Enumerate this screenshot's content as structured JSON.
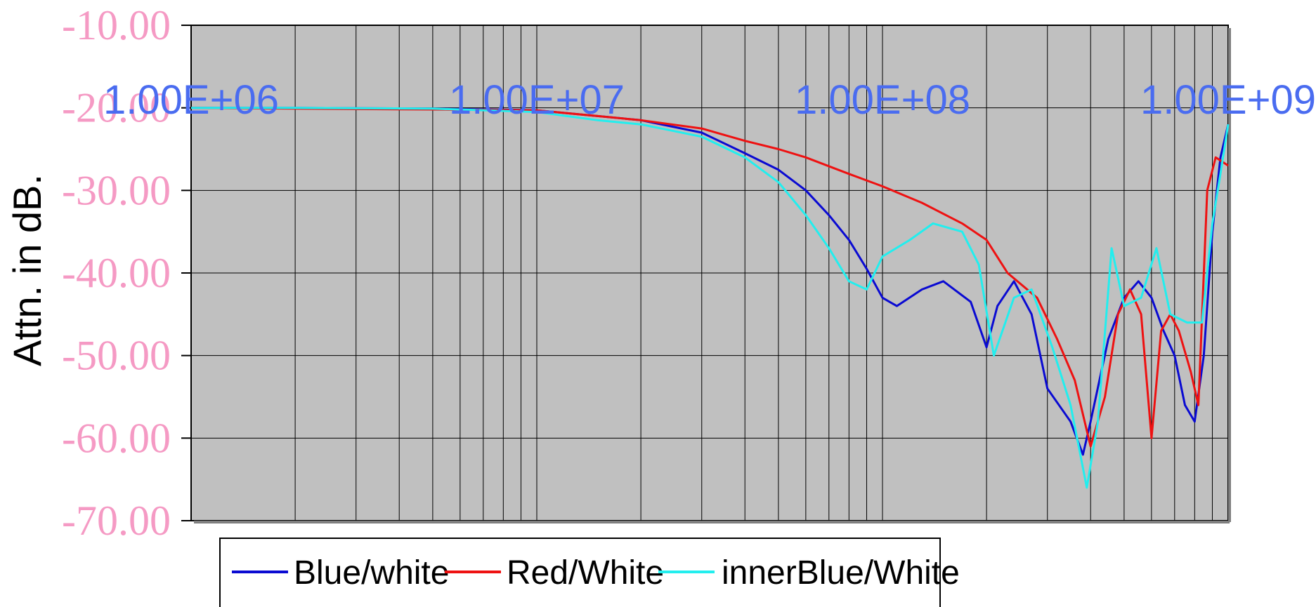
{
  "chart_data": {
    "type": "line",
    "title": "",
    "xlabel": "",
    "ylabel": "Attn. in dB.",
    "x_scale": "log",
    "xlim": [
      1000000,
      1000000000
    ],
    "ylim": [
      -70,
      -10
    ],
    "x_tick_labels": [
      "1.00E+06",
      "1.00E+07",
      "1.00E+08",
      "1.00E+09"
    ],
    "x_tick_values": [
      1000000,
      10000000,
      100000000,
      1000000000
    ],
    "y_tick_labels": [
      "-10.00",
      "-20.00",
      "-30.00",
      "-40.00",
      "-50.00",
      "-60.00",
      "-70.00"
    ],
    "y_tick_values": [
      -10,
      -20,
      -30,
      -40,
      -50,
      -60,
      -70
    ],
    "grid": true,
    "plot_background": "#c0c0c0",
    "legend_position": "bottom",
    "series": [
      {
        "name": "Blue/white",
        "color": "#0a0ad2",
        "points": [
          [
            1000000,
            -20.0
          ],
          [
            2000000,
            -20.0
          ],
          [
            5000000,
            -20.1
          ],
          [
            10000000,
            -20.3
          ],
          [
            15000000,
            -21.0
          ],
          [
            20000000,
            -21.5
          ],
          [
            30000000,
            -23.0
          ],
          [
            40000000,
            -25.5
          ],
          [
            50000000,
            -27.5
          ],
          [
            60000000,
            -30.0
          ],
          [
            70000000,
            -33.0
          ],
          [
            80000000,
            -36.0
          ],
          [
            90000000,
            -39.5
          ],
          [
            100000000,
            -43.0
          ],
          [
            110000000,
            -44.0
          ],
          [
            130000000,
            -42.0
          ],
          [
            150000000,
            -41.0
          ],
          [
            180000000,
            -43.5
          ],
          [
            200000000,
            -49.0
          ],
          [
            215000000,
            -44.0
          ],
          [
            240000000,
            -41.0
          ],
          [
            270000000,
            -45.0
          ],
          [
            300000000,
            -54.0
          ],
          [
            350000000,
            -58.0
          ],
          [
            380000000,
            -62.0
          ],
          [
            400000000,
            -58.0
          ],
          [
            450000000,
            -48.0
          ],
          [
            500000000,
            -43.0
          ],
          [
            550000000,
            -41.0
          ],
          [
            600000000,
            -43.0
          ],
          [
            650000000,
            -47.0
          ],
          [
            700000000,
            -50.0
          ],
          [
            750000000,
            -56.0
          ],
          [
            800000000,
            -58.0
          ],
          [
            850000000,
            -50.0
          ],
          [
            900000000,
            -35.0
          ],
          [
            950000000,
            -26.0
          ],
          [
            1000000000,
            -22.0
          ]
        ]
      },
      {
        "name": "Red/White",
        "color": "#ee1111",
        "points": [
          [
            1000000,
            -20.0
          ],
          [
            2000000,
            -20.1
          ],
          [
            5000000,
            -20.2
          ],
          [
            10000000,
            -20.3
          ],
          [
            15000000,
            -21.0
          ],
          [
            20000000,
            -21.5
          ],
          [
            30000000,
            -22.5
          ],
          [
            40000000,
            -24.0
          ],
          [
            50000000,
            -25.0
          ],
          [
            60000000,
            -26.0
          ],
          [
            80000000,
            -28.0
          ],
          [
            100000000,
            -29.5
          ],
          [
            130000000,
            -31.5
          ],
          [
            170000000,
            -34.0
          ],
          [
            200000000,
            -36.0
          ],
          [
            230000000,
            -40.0
          ],
          [
            280000000,
            -43.0
          ],
          [
            320000000,
            -48.0
          ],
          [
            360000000,
            -53.0
          ],
          [
            400000000,
            -61.0
          ],
          [
            440000000,
            -55.0
          ],
          [
            480000000,
            -45.0
          ],
          [
            520000000,
            -42.0
          ],
          [
            560000000,
            -45.0
          ],
          [
            600000000,
            -60.0
          ],
          [
            640000000,
            -47.0
          ],
          [
            680000000,
            -45.0
          ],
          [
            720000000,
            -47.0
          ],
          [
            780000000,
            -52.0
          ],
          [
            820000000,
            -56.0
          ],
          [
            870000000,
            -30.0
          ],
          [
            920000000,
            -26.0
          ],
          [
            1000000000,
            -27.0
          ]
        ]
      },
      {
        "name": "innerBlue/White",
        "color": "#22eeee",
        "points": [
          [
            1000000,
            -20.0
          ],
          [
            2000000,
            -20.0
          ],
          [
            5000000,
            -20.1
          ],
          [
            10000000,
            -20.5
          ],
          [
            15000000,
            -21.5
          ],
          [
            20000000,
            -22.0
          ],
          [
            30000000,
            -23.5
          ],
          [
            40000000,
            -26.0
          ],
          [
            50000000,
            -29.0
          ],
          [
            60000000,
            -33.0
          ],
          [
            70000000,
            -37.0
          ],
          [
            80000000,
            -41.0
          ],
          [
            90000000,
            -42.0
          ],
          [
            100000000,
            -38.0
          ],
          [
            120000000,
            -36.0
          ],
          [
            140000000,
            -34.0
          ],
          [
            170000000,
            -35.0
          ],
          [
            190000000,
            -39.0
          ],
          [
            210000000,
            -50.0
          ],
          [
            240000000,
            -43.0
          ],
          [
            270000000,
            -42.0
          ],
          [
            310000000,
            -49.0
          ],
          [
            350000000,
            -56.0
          ],
          [
            390000000,
            -66.0
          ],
          [
            420000000,
            -58.0
          ],
          [
            460000000,
            -37.0
          ],
          [
            500000000,
            -44.0
          ],
          [
            560000000,
            -43.0
          ],
          [
            620000000,
            -37.0
          ],
          [
            680000000,
            -45.0
          ],
          [
            760000000,
            -46.0
          ],
          [
            840000000,
            -46.0
          ],
          [
            900000000,
            -34.0
          ],
          [
            950000000,
            -28.0
          ],
          [
            1000000000,
            -22.0
          ]
        ]
      }
    ]
  }
}
